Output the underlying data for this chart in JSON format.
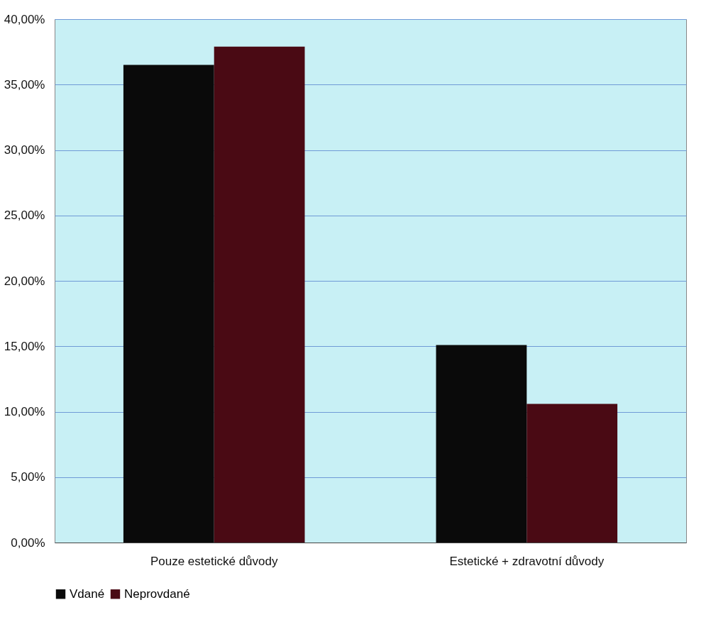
{
  "chart_data": {
    "type": "bar",
    "categories": [
      "Pouze estetické důvody",
      "Estetické + zdravotní důvody"
    ],
    "series": [
      {
        "name": "Vdané",
        "color": "#0a0a0a",
        "values": [
          36.5,
          15.1
        ]
      },
      {
        "name": "Neprovdané",
        "color": "#4a0a14",
        "values": [
          37.9,
          10.6
        ]
      }
    ],
    "ylim": [
      0,
      40
    ],
    "yticks": [
      {
        "value": 0,
        "label": "0,00%"
      },
      {
        "value": 5,
        "label": "5,00%"
      },
      {
        "value": 10,
        "label": "10,00%"
      },
      {
        "value": 15,
        "label": "15,00%"
      },
      {
        "value": 20,
        "label": "20,00%"
      },
      {
        "value": 25,
        "label": "25,00%"
      },
      {
        "value": 30,
        "label": "30,00%"
      },
      {
        "value": 35,
        "label": "35,00%"
      },
      {
        "value": 40,
        "label": "40,00%"
      }
    ],
    "grid": "y",
    "legend": "bottom"
  }
}
